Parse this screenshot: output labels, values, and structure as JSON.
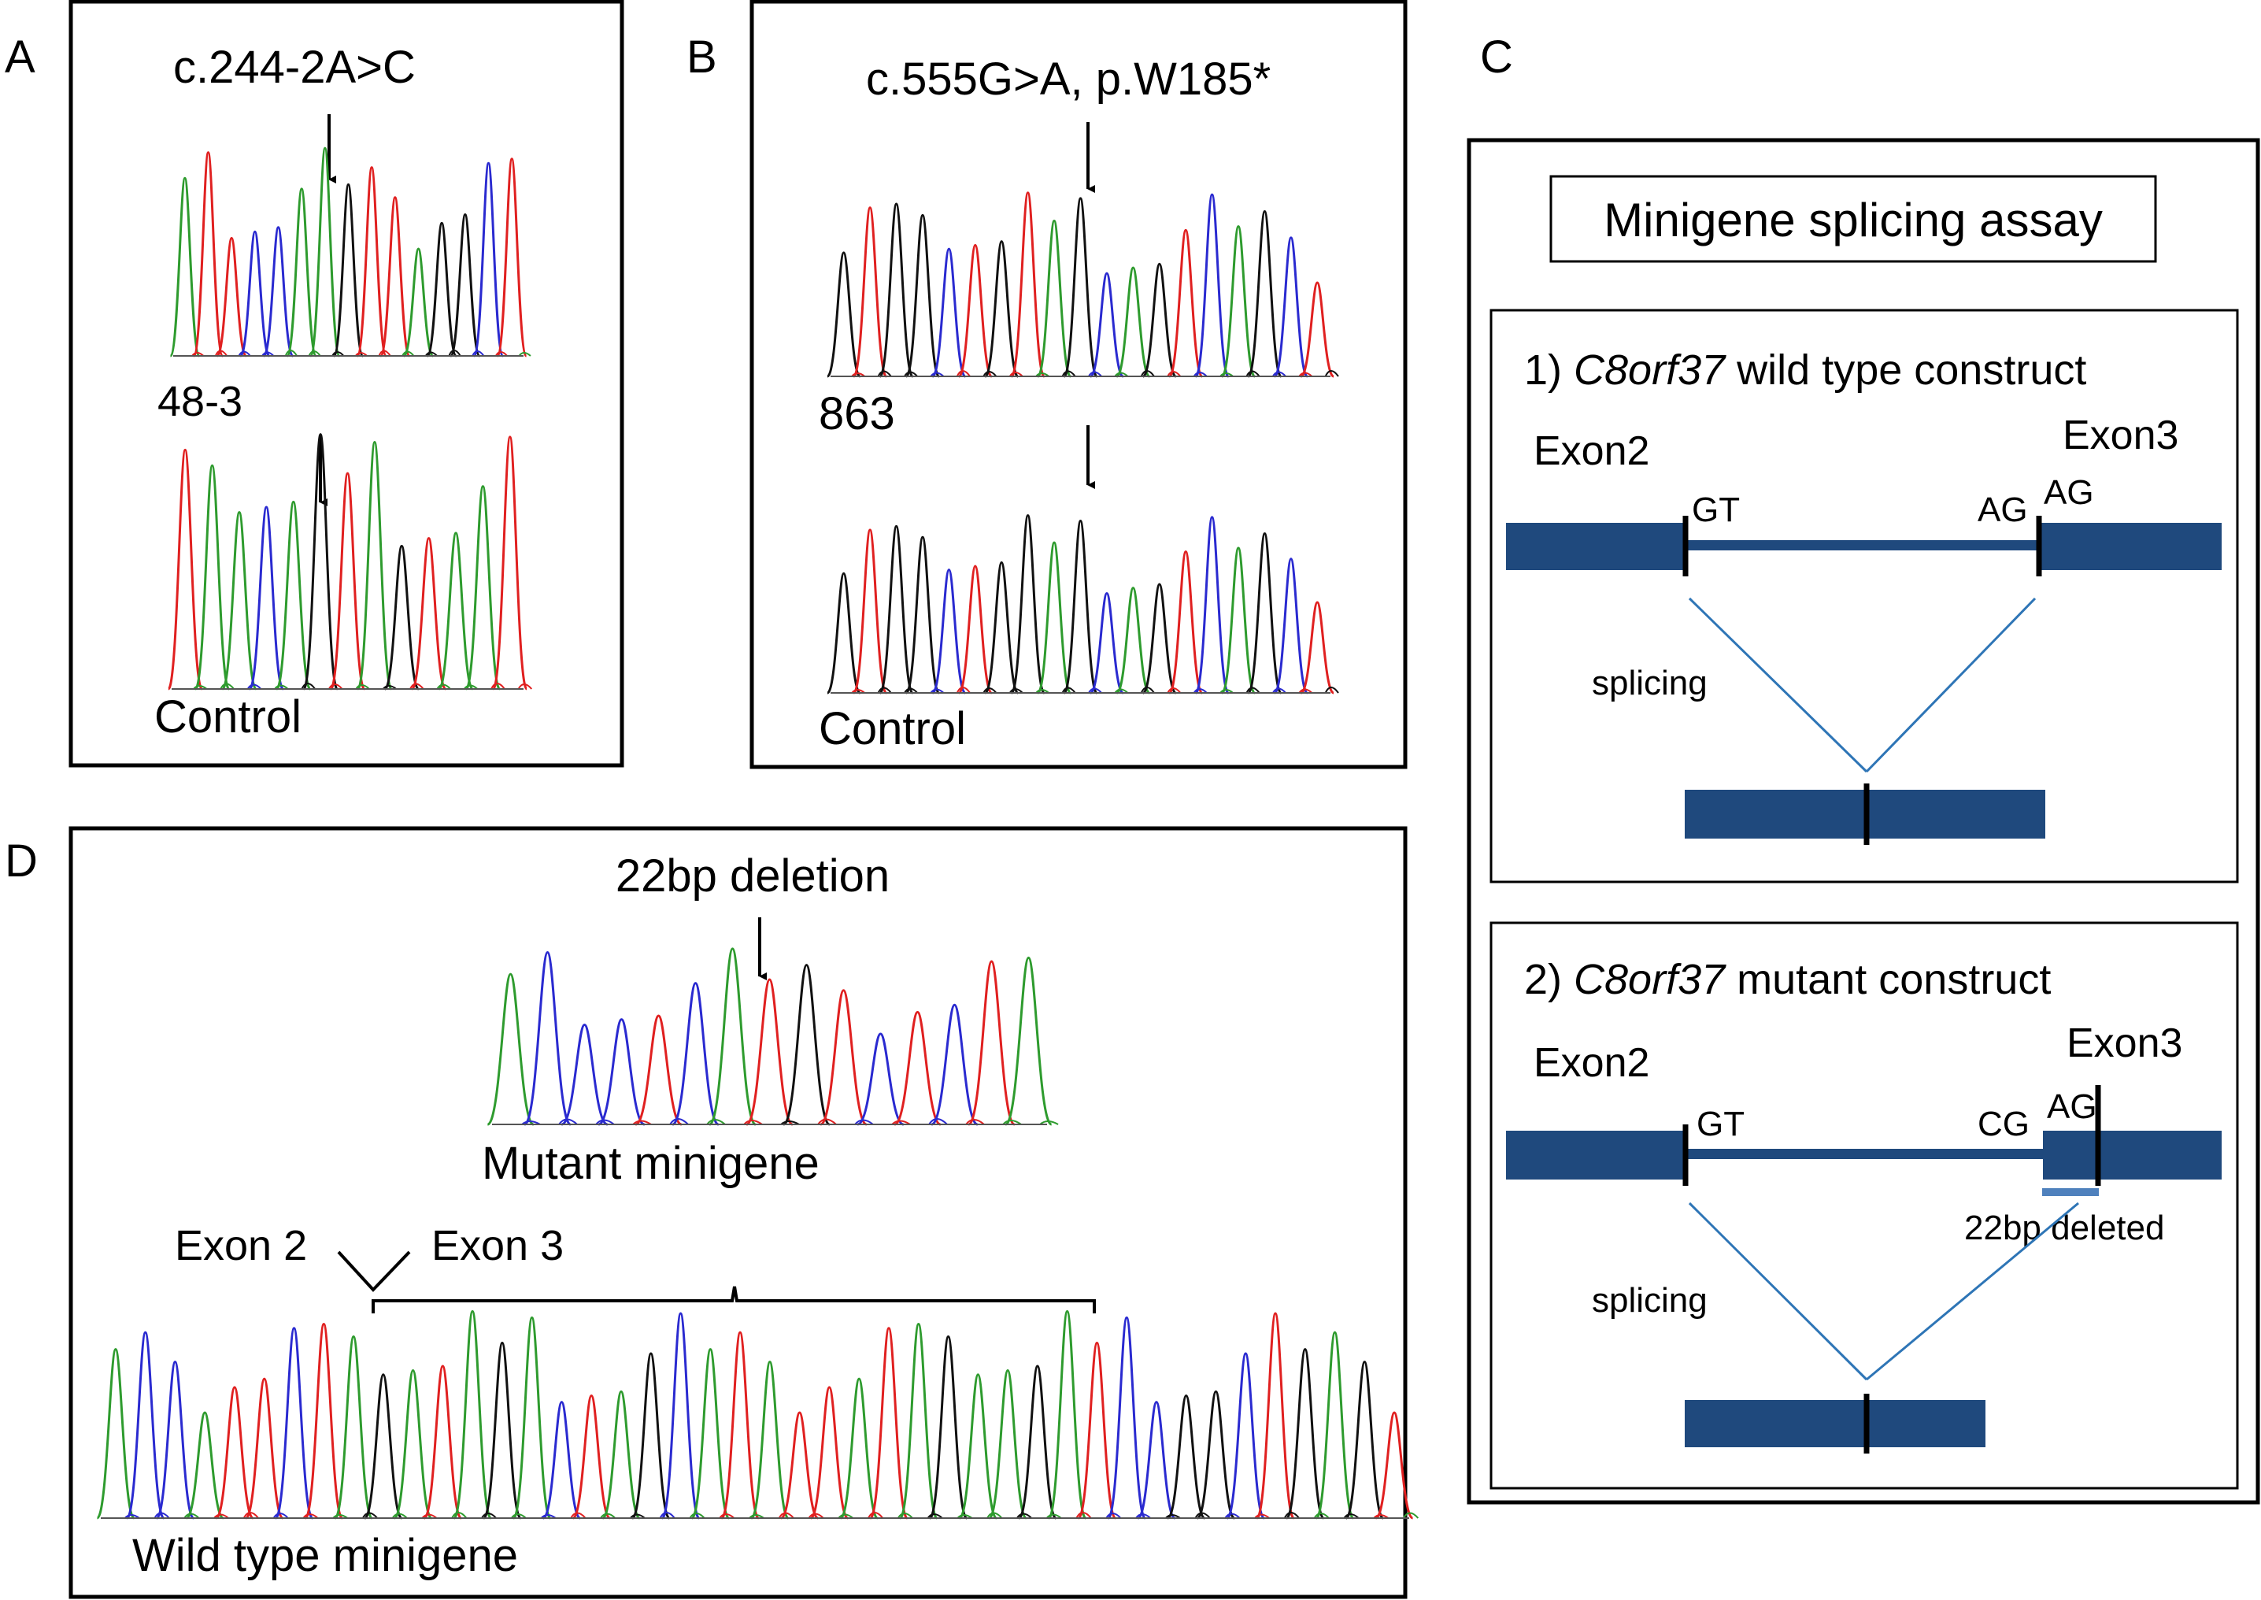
{
  "colors": {
    "A": "#2e9b2e",
    "C": "#2a2ad0",
    "G": "#111111",
    "T": "#e02020",
    "exon": "#1f497d",
    "intron": "#1f497d",
    "splice_line": "#2e75b6",
    "deleted_bar": "#4f81bd"
  },
  "panel_a": {
    "letter": "A",
    "mutation": "c.244-2A>C",
    "sample": "48-3",
    "control": "Control",
    "trace_top": "ATTCCAAGTTAGGCT",
    "trace_bottom": "TAACAGTAGTAAT"
  },
  "panel_b": {
    "letter": "B",
    "mutation": "c.555G>A, p.W185*",
    "sample": "863",
    "control": "Control",
    "trace_top": "GTGGCTGTAGCAGTCAGCT",
    "trace_bottom": "GTGGCTGGAGCAGTCAGCT"
  },
  "panel_c": {
    "letter": "C",
    "title": "Minigene splicing assay",
    "wt": {
      "num": "1)",
      "gene": "C8orf37",
      "label": "wild type construct",
      "exon2": "Exon2",
      "exon3": "Exon3",
      "donor": "GT",
      "acceptor": "AG",
      "acceptor2": "AG",
      "splicing": "splicing"
    },
    "mut": {
      "num": "2)",
      "gene": "C8orf37",
      "label": "mutant construct",
      "exon2": "Exon2",
      "exon3": "Exon3",
      "donor": "GT",
      "acceptor": "CG",
      "acceptor2": "AG",
      "deleted": "22bp deleted",
      "splicing": "splicing"
    }
  },
  "panel_d": {
    "letter": "D",
    "deletion": "22bp deletion",
    "mutant": "Mutant minigene",
    "exon2": "Exon 2",
    "exon3": "Exon 3",
    "wildtype": "Wild type minigene",
    "trace_mutant": "ACCCTCATGTCTCTA",
    "trace_wt": "ACCATTCTAGATAGACTAGCATATTATAGAAGATCCGGCTGAGT"
  }
}
